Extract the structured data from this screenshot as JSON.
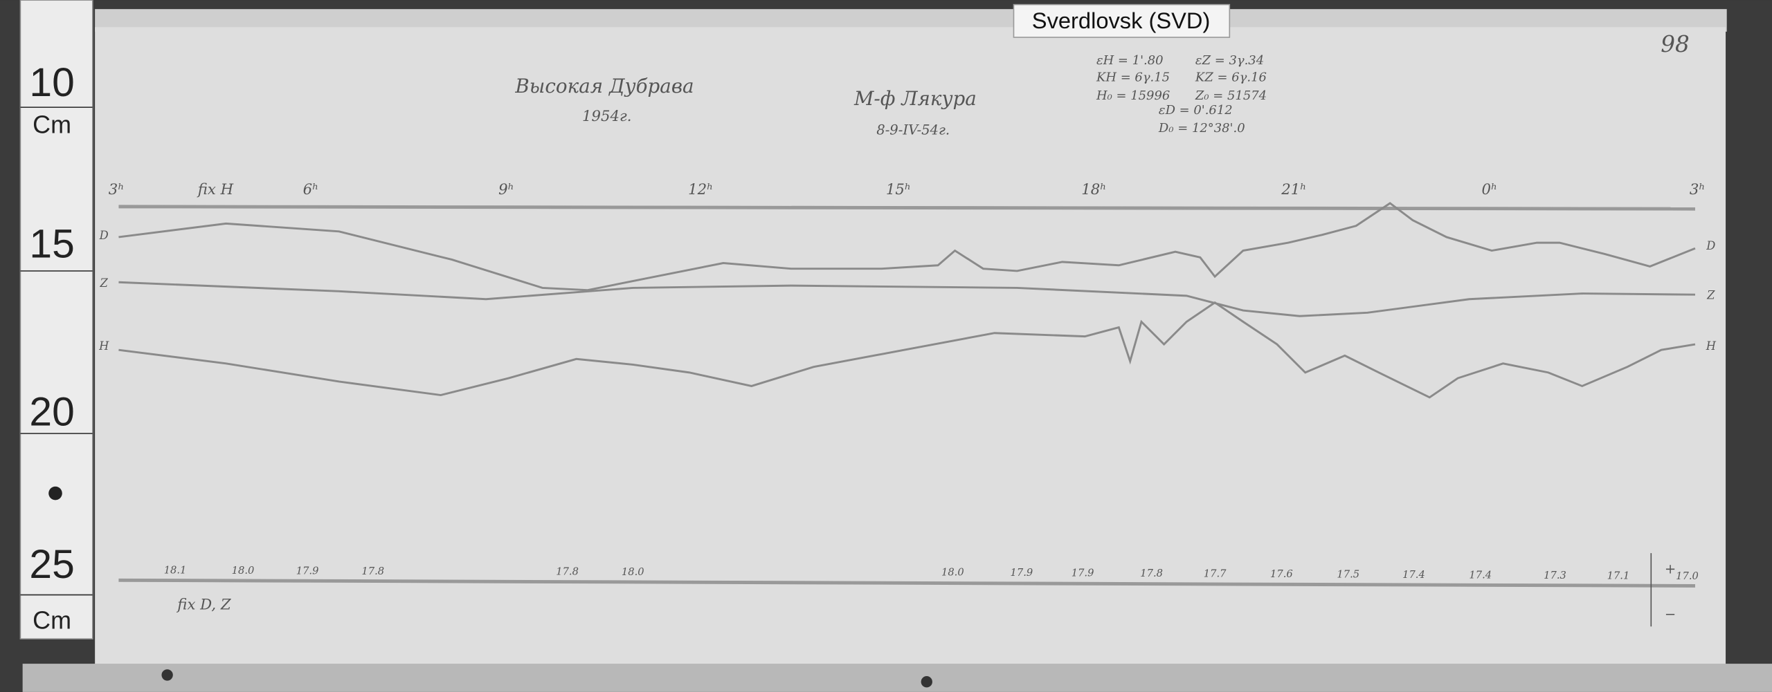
{
  "label": "Sverdlovsk (SVD)",
  "ruler": {
    "labels": [
      "10",
      "Cm",
      "15",
      "20",
      "25",
      "Cm"
    ]
  },
  "page_number": "98",
  "header": {
    "station": "Высокая Дубрава",
    "year": "1954г.",
    "instrument": "М-ф Лякура",
    "date": "8-9-IV-54г.",
    "constants": [
      "εH = 1'.80",
      "εZ = 3γ.34",
      "KH = 6γ.15",
      "KZ = 6γ.16",
      "H₀ = 15996",
      "Z₀ = 51574",
      "εD = 0'.612",
      "D₀ = 12°38'.0"
    ]
  },
  "hours": [
    "3ʰ",
    "6ʰ",
    "9ʰ",
    "12ʰ",
    "15ʰ",
    "18ʰ",
    "21ʰ",
    "0ʰ",
    "3ʰ"
  ],
  "fix_h": "fix H",
  "fix_dz": "fix D, Z",
  "traces": {
    "left": [
      "D",
      "Z",
      "H"
    ],
    "right": [
      "D",
      "Z",
      "H"
    ]
  },
  "temperatures": [
    "18.1",
    "18.0",
    "17.9",
    "17.8",
    "17.8",
    "18.0",
    "18.0",
    "17.9",
    "17.9",
    "17.8",
    "17.7",
    "17.6",
    "17.5",
    "17.4",
    "17.4",
    "17.3",
    "17.1",
    "17.0"
  ],
  "scale": {
    "plus": "+",
    "minus": "−"
  }
}
